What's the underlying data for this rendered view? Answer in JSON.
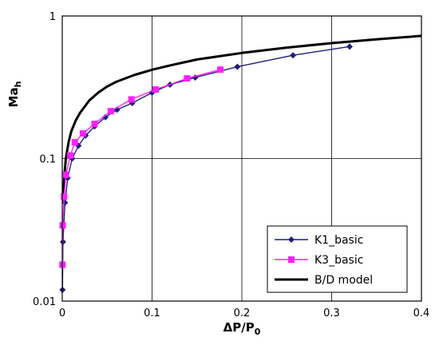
{
  "chart_data": {
    "type": "line",
    "xlabel": "ΔP/P",
    "xlabel_sub": "0",
    "ylabel": "Ma",
    "ylabel_sub": "h",
    "xlim": [
      0,
      0.4
    ],
    "ylim": [
      0.01,
      1
    ],
    "y_scale": "log",
    "grid": true,
    "legend_position": "bottom-right",
    "x_ticks": [
      "0",
      "0.1",
      "0.2",
      "0.3",
      "0.4"
    ],
    "y_ticks": [
      "0.01",
      "0.1",
      "1"
    ],
    "x_tick_values": [
      0,
      0.1,
      0.2,
      0.3,
      0.4
    ],
    "y_tick_values": [
      0.01,
      0.1,
      1
    ],
    "series": [
      {
        "name": "K1_basic",
        "color": "#1f1f7a",
        "marker": "diamond",
        "x": [
          0.0003,
          0.0005,
          0.0008,
          0.003,
          0.006,
          0.011,
          0.018,
          0.026,
          0.036,
          0.048,
          0.061,
          0.078,
          0.1,
          0.12,
          0.148,
          0.195,
          0.257,
          0.32
        ],
        "y": [
          0.012,
          0.018,
          0.026,
          0.049,
          0.073,
          0.1,
          0.123,
          0.145,
          0.168,
          0.195,
          0.22,
          0.245,
          0.29,
          0.33,
          0.37,
          0.44,
          0.53,
          0.61
        ]
      },
      {
        "name": "K3_basic",
        "color": "#ff1fff",
        "marker": "square",
        "x": [
          0.0002,
          0.0005,
          0.002,
          0.004,
          0.009,
          0.014,
          0.023,
          0.036,
          0.054,
          0.077,
          0.104,
          0.139,
          0.176
        ],
        "y": [
          0.018,
          0.034,
          0.054,
          0.077,
          0.105,
          0.13,
          0.15,
          0.175,
          0.215,
          0.26,
          0.305,
          0.365,
          0.42
        ]
      },
      {
        "name": "B/D model",
        "color": "#000000",
        "marker": "none",
        "x": [
          0.001,
          0.002,
          0.004,
          0.007,
          0.01,
          0.015,
          0.02,
          0.03,
          0.04,
          0.05,
          0.06,
          0.08,
          0.1,
          0.12,
          0.15,
          0.2,
          0.25,
          0.3,
          0.35,
          0.4
        ],
        "y": [
          0.05,
          0.072,
          0.1,
          0.13,
          0.155,
          0.185,
          0.21,
          0.255,
          0.29,
          0.32,
          0.345,
          0.385,
          0.42,
          0.45,
          0.495,
          0.55,
          0.6,
          0.645,
          0.685,
          0.725
        ]
      }
    ]
  }
}
